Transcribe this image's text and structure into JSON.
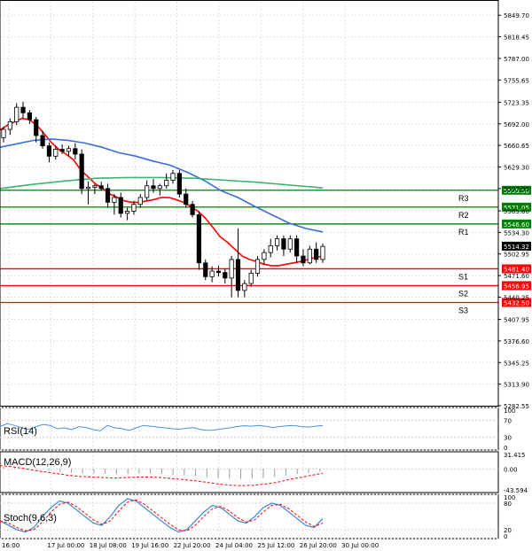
{
  "chart_data": {
    "type": "candlestick",
    "title": "",
    "main_axis": {
      "ylim": [
        5282.55,
        5859
      ],
      "ticks": [
        "5849.70",
        "5818.45",
        "5787.00",
        "5755.65",
        "5723.35",
        "5692.00",
        "5660.65",
        "5629.30",
        "5597.95",
        "5565.60",
        "5534.30",
        "5502.95",
        "5471.60",
        "5440.25",
        "5407.95",
        "5376.60",
        "5345.25",
        "5313.90",
        "5282.55"
      ]
    },
    "x_ticks": [
      "16:00",
      "17 Jul 00:00",
      "18 Jul 08:00",
      "19 Jul 16:00",
      "22 Jul 20:00",
      "24 Jul 04:00",
      "25 Jul 12:00",
      "26 Jul 20:00",
      "30 Jul 00:00"
    ],
    "current_price": "5514.32",
    "levels": [
      {
        "name": "R3",
        "value": 5595.5,
        "label": "5595.50",
        "color": "#008000"
      },
      {
        "name": "R2",
        "value": 5571.05,
        "label": "5571.05",
        "color": "#008000"
      },
      {
        "name": "R1",
        "value": 5546.6,
        "label": "5546.60",
        "color": "#008000"
      },
      {
        "name": "S1",
        "value": 5481.4,
        "label": "5481.40",
        "color": "#ff0000"
      },
      {
        "name": "S2",
        "value": 5456.95,
        "label": "5456.95",
        "color": "#ff0000"
      },
      {
        "name": "S3",
        "value": 5432.5,
        "label": "5432.50",
        "color": "#ff0000"
      }
    ],
    "candles": [
      [
        5672,
        5688,
        5665,
        5684
      ],
      [
        5684,
        5700,
        5676,
        5695
      ],
      [
        5695,
        5722,
        5690,
        5716
      ],
      [
        5716,
        5724,
        5700,
        5708
      ],
      [
        5708,
        5712,
        5692,
        5698
      ],
      [
        5698,
        5702,
        5665,
        5675
      ],
      [
        5675,
        5682,
        5656,
        5660
      ],
      [
        5660,
        5665,
        5636,
        5645
      ],
      [
        5645,
        5660,
        5640,
        5655
      ],
      [
        5655,
        5662,
        5648,
        5652
      ],
      [
        5652,
        5660,
        5645,
        5656
      ],
      [
        5656,
        5664,
        5640,
        5648
      ],
      [
        5648,
        5655,
        5590,
        5598
      ],
      [
        5598,
        5608,
        5575,
        5600
      ],
      [
        5600,
        5605,
        5590,
        5602
      ],
      [
        5602,
        5608,
        5595,
        5598
      ],
      [
        5598,
        5605,
        5570,
        5578
      ],
      [
        5578,
        5590,
        5560,
        5585
      ],
      [
        5585,
        5592,
        5556,
        5562
      ],
      [
        5562,
        5570,
        5552,
        5565
      ],
      [
        5565,
        5580,
        5560,
        5575
      ],
      [
        5575,
        5590,
        5570,
        5585
      ],
      [
        5585,
        5610,
        5580,
        5602
      ],
      [
        5602,
        5612,
        5592,
        5598
      ],
      [
        5598,
        5605,
        5588,
        5602
      ],
      [
        5602,
        5620,
        5598,
        5610
      ],
      [
        5610,
        5625,
        5605,
        5620
      ],
      [
        5620,
        5625,
        5585,
        5590
      ],
      [
        5590,
        5598,
        5570,
        5575
      ],
      [
        5575,
        5580,
        5556,
        5560
      ],
      [
        5560,
        5565,
        5480,
        5490
      ],
      [
        5490,
        5495,
        5465,
        5470
      ],
      [
        5470,
        5485,
        5462,
        5478
      ],
      [
        5478,
        5486,
        5470,
        5476
      ],
      [
        5476,
        5482,
        5460,
        5468
      ],
      [
        5468,
        5500,
        5440,
        5495
      ],
      [
        5495,
        5540,
        5440,
        5450
      ],
      [
        5450,
        5465,
        5440,
        5460
      ],
      [
        5460,
        5480,
        5455,
        5475
      ],
      [
        5475,
        5500,
        5470,
        5495
      ],
      [
        5495,
        5510,
        5488,
        5505
      ],
      [
        5505,
        5525,
        5498,
        5515
      ],
      [
        5515,
        5530,
        5508,
        5525
      ],
      [
        5525,
        5530,
        5500,
        5510
      ],
      [
        5510,
        5530,
        5505,
        5525
      ],
      [
        5525,
        5530,
        5490,
        5500
      ],
      [
        5500,
        5510,
        5485,
        5490
      ],
      [
        5490,
        5515,
        5488,
        5510
      ],
      [
        5510,
        5520,
        5490,
        5495
      ],
      [
        5495,
        5518,
        5490,
        5514
      ]
    ],
    "series": [
      {
        "name": "",
        "color": "#ff0000",
        "panel": "main",
        "values": [
          5683,
          5690,
          5695,
          5700,
          5698,
          5690,
          5678,
          5665,
          5655,
          5648,
          5640,
          5625,
          5615,
          5605,
          5598,
          5590,
          5585,
          5580,
          5578,
          5578,
          5580,
          5582,
          5585,
          5585,
          5582,
          5578,
          5572,
          5565,
          5555,
          5542,
          5528,
          5520,
          5510,
          5500,
          5495,
          5492,
          5488,
          5486,
          5486,
          5488,
          5490,
          5492,
          5495,
          5498,
          5500
        ]
      },
      {
        "name": "",
        "color": "#3a6fd8",
        "panel": "main",
        "values": [
          5658,
          5663,
          5668,
          5670,
          5668,
          5664,
          5658,
          5650,
          5645,
          5638,
          5632,
          5622,
          5610,
          5595,
          5585,
          5572,
          5560,
          5548,
          5540,
          5535
        ]
      },
      {
        "name": "",
        "color": "#3cb371",
        "panel": "main",
        "values": [
          5598,
          5604,
          5609,
          5613,
          5614,
          5614,
          5613,
          5610,
          5607,
          5603,
          5599
        ]
      },
      {
        "name": "RSI(14)",
        "color": "#4a90d9",
        "panel": "rsi",
        "values": [
          55,
          62,
          58,
          52,
          48,
          55,
          60,
          58,
          50,
          52,
          48,
          55,
          53,
          48,
          45,
          58,
          52,
          50,
          46,
          52,
          58,
          56,
          54,
          52,
          50,
          49,
          51,
          53,
          48,
          46,
          47,
          50,
          52,
          55,
          57,
          56,
          58,
          56,
          53,
          55,
          57,
          58,
          55,
          54,
          56,
          58
        ]
      },
      {
        "name": "MACD(12,26,9)",
        "color": "#ff0000",
        "panel": "macd",
        "values": [
          6,
          4,
          1,
          -3,
          -6,
          -9,
          -12,
          -14,
          -15,
          -16,
          -17,
          -16,
          -15,
          -15,
          -16,
          -18,
          -20,
          -22,
          -25,
          -28,
          -30,
          -31,
          -30,
          -28,
          -25,
          -20,
          -16,
          -12,
          -8
        ]
      },
      {
        "name": "Stoch(9,6,3)",
        "color": "#4a90d9",
        "panel": "stoch",
        "values": [
          40,
          30,
          20,
          15,
          25,
          50,
          70,
          85,
          80,
          65,
          50,
          35,
          30,
          50,
          75,
          90,
          85,
          70,
          55,
          40,
          25,
          15,
          20,
          40,
          60,
          75,
          70,
          55,
          40,
          35,
          50,
          70,
          80,
          75,
          60,
          45,
          30,
          25,
          45
        ]
      }
    ],
    "rsi_axis": {
      "ticks": [
        "100",
        "70",
        "30",
        "0"
      ]
    },
    "macd_axis": {
      "ticks": [
        "31.415",
        "0.00",
        "-43.594"
      ]
    },
    "stoch_axis": {
      "ticks": [
        "100",
        "80",
        "20",
        "0"
      ]
    }
  }
}
